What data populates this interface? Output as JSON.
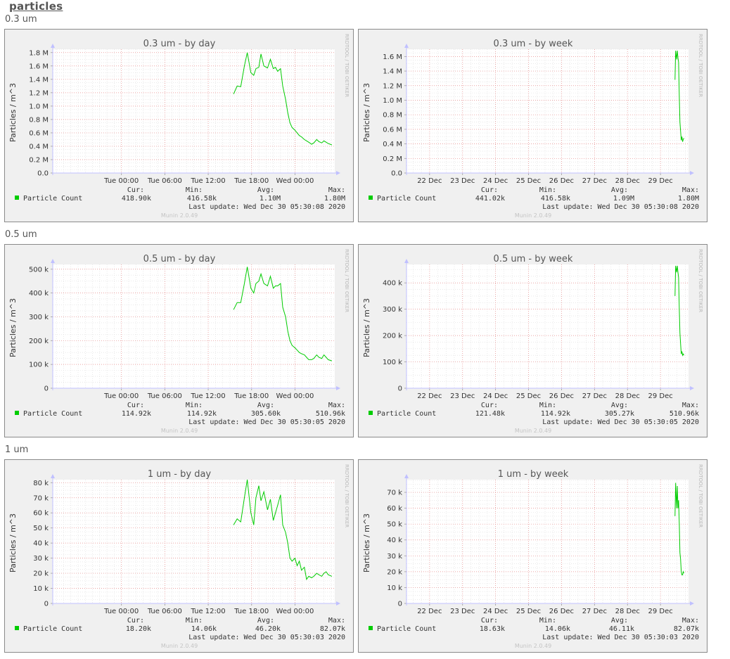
{
  "page": {
    "title": "particles",
    "watermark": "RRDTOOL / TOBI OETIKER",
    "footer": "Munin 2.0.49"
  },
  "colors": {
    "series": "#00cc00",
    "major_grid": "#e88a8a",
    "minor_grid": "#dcdcdc",
    "axis": "#c0c0ff"
  },
  "sections": [
    {
      "label": "0.3 um"
    },
    {
      "label": "0.5 um"
    },
    {
      "label": "1 um"
    }
  ],
  "chart_data": [
    {
      "type": "line",
      "title": "0.3 um - by day",
      "ylabel": "Particles / m^3",
      "x_tick_labels": [
        "Tue 00:00",
        "Tue 06:00",
        "Tue 12:00",
        "Tue 18:00",
        "Wed 00:00"
      ],
      "x_range_hours": [
        -9.5,
        29.5
      ],
      "x_ticks_hours": [
        0,
        6,
        12,
        18,
        24
      ],
      "y_ticks": [
        0,
        200000,
        400000,
        600000,
        800000,
        1000000,
        1200000,
        1400000,
        1600000,
        1800000
      ],
      "y_tick_labels": [
        "0.0",
        "0.2 M",
        "0.4 M",
        "0.6 M",
        "0.8 M",
        "1.0 M",
        "1.2 M",
        "1.4 M",
        "1.6 M",
        "1.8 M"
      ],
      "ylim": [
        0,
        1850000
      ],
      "series": [
        {
          "name": "Particle Count",
          "x": [
            15.5,
            16.0,
            16.5,
            17.0,
            17.4,
            17.9,
            18.3,
            18.6,
            19.0,
            19.3,
            19.7,
            20.2,
            20.6,
            21.0,
            21.3,
            21.6,
            22.0,
            22.3,
            22.7,
            23.0,
            23.3,
            23.6,
            24.0,
            24.3,
            24.6,
            24.9,
            25.3,
            25.6,
            25.9,
            26.3,
            26.6,
            27.0,
            27.3,
            27.7,
            28.0,
            28.3,
            28.6,
            29.1
          ],
          "y": [
            1180000,
            1300000,
            1290000,
            1600000,
            1800000,
            1500000,
            1460000,
            1560000,
            1580000,
            1780000,
            1600000,
            1570000,
            1700000,
            1560000,
            1580000,
            1520000,
            1560000,
            1300000,
            1100000,
            900000,
            750000,
            680000,
            640000,
            600000,
            560000,
            540000,
            500000,
            480000,
            460000,
            430000,
            450000,
            500000,
            470000,
            450000,
            480000,
            460000,
            440000,
            420000
          ]
        }
      ],
      "legend": {
        "name": "Particle Count",
        "cur": "418.90k",
        "min": "416.58k",
        "avg": "1.10M",
        "max": "1.80M"
      },
      "last_update": "Last update: Wed Dec 30 05:30:08 2020"
    },
    {
      "type": "line",
      "title": "0.3 um - by week",
      "ylabel": "Particles / m^3",
      "x_tick_labels": [
        "22 Dec",
        "23 Dec",
        "24 Dec",
        "25 Dec",
        "26 Dec",
        "27 Dec",
        "28 Dec",
        "29 Dec"
      ],
      "x_range_days": [
        21.3,
        29.85
      ],
      "x_ticks_days": [
        22,
        23,
        24,
        25,
        26,
        27,
        28,
        29
      ],
      "y_ticks": [
        0,
        200000,
        400000,
        600000,
        800000,
        1000000,
        1200000,
        1400000,
        1600000
      ],
      "y_tick_labels": [
        "0.0",
        "0.2 M",
        "0.4 M",
        "0.6 M",
        "0.8 M",
        "1.0 M",
        "1.2 M",
        "1.4 M",
        "1.6 M"
      ],
      "ylim": [
        0,
        1700000
      ],
      "series": [
        {
          "name": "Particle Count",
          "x": [
            29.44,
            29.46,
            29.49,
            29.51,
            29.53,
            29.55,
            29.57,
            29.59,
            29.61,
            29.63,
            29.65,
            29.67,
            29.69,
            29.71
          ],
          "y": [
            1280000,
            1680000,
            1560000,
            1680000,
            1580000,
            1520000,
            1050000,
            700000,
            580000,
            450000,
            500000,
            430000,
            460000,
            480000
          ]
        }
      ],
      "legend": {
        "name": "Particle Count",
        "cur": "441.02k",
        "min": "416.58k",
        "avg": "1.09M",
        "max": "1.80M"
      },
      "last_update": "Last update: Wed Dec 30 05:30:08 2020"
    },
    {
      "type": "line",
      "title": "0.5 um - by day",
      "ylabel": "Particles / m^3",
      "x_tick_labels": [
        "Tue 00:00",
        "Tue 06:00",
        "Tue 12:00",
        "Tue 18:00",
        "Wed 00:00"
      ],
      "x_range_hours": [
        -9.5,
        29.5
      ],
      "x_ticks_hours": [
        0,
        6,
        12,
        18,
        24
      ],
      "y_ticks": [
        0,
        100000,
        200000,
        300000,
        400000,
        500000
      ],
      "y_tick_labels": [
        "0",
        "100 k",
        "200 k",
        "300 k",
        "400 k",
        "500 k"
      ],
      "ylim": [
        0,
        520000
      ],
      "series": [
        {
          "name": "Particle Count",
          "x": [
            15.5,
            16.0,
            16.5,
            17.0,
            17.4,
            17.9,
            18.3,
            18.6,
            19.0,
            19.3,
            19.7,
            20.2,
            20.6,
            21.0,
            21.3,
            21.6,
            22.0,
            22.3,
            22.7,
            23.0,
            23.3,
            23.6,
            24.0,
            24.3,
            24.6,
            24.9,
            25.3,
            25.6,
            25.9,
            26.3,
            26.6,
            27.0,
            27.3,
            27.7,
            28.0,
            28.3,
            28.6,
            29.1
          ],
          "y": [
            330000,
            360000,
            360000,
            440000,
            510000,
            420000,
            400000,
            440000,
            450000,
            480000,
            440000,
            430000,
            470000,
            420000,
            430000,
            430000,
            440000,
            340000,
            300000,
            240000,
            200000,
            180000,
            170000,
            160000,
            150000,
            145000,
            140000,
            130000,
            120000,
            120000,
            125000,
            140000,
            130000,
            125000,
            140000,
            130000,
            120000,
            115000
          ]
        }
      ],
      "legend": {
        "name": "Particle Count",
        "cur": "114.92k",
        "min": "114.92k",
        "avg": "305.60k",
        "max": "510.96k"
      },
      "last_update": "Last update: Wed Dec 30 05:30:05 2020"
    },
    {
      "type": "line",
      "title": "0.5 um - by week",
      "ylabel": "Particles / m^3",
      "x_tick_labels": [
        "22 Dec",
        "23 Dec",
        "24 Dec",
        "25 Dec",
        "26 Dec",
        "27 Dec",
        "28 Dec",
        "29 Dec"
      ],
      "x_range_days": [
        21.3,
        29.85
      ],
      "x_ticks_days": [
        22,
        23,
        24,
        25,
        26,
        27,
        28,
        29
      ],
      "y_ticks": [
        0,
        100000,
        200000,
        300000,
        400000
      ],
      "y_tick_labels": [
        "0",
        "100 k",
        "200 k",
        "300 k",
        "400 k"
      ],
      "ylim": [
        0,
        470000
      ],
      "series": [
        {
          "name": "Particle Count",
          "x": [
            29.44,
            29.46,
            29.49,
            29.51,
            29.53,
            29.55,
            29.57,
            29.59,
            29.61,
            29.63,
            29.65,
            29.67,
            29.69,
            29.71
          ],
          "y": [
            350000,
            465000,
            440000,
            465000,
            440000,
            420000,
            300000,
            210000,
            170000,
            130000,
            140000,
            125000,
            130000,
            125000
          ]
        }
      ],
      "legend": {
        "name": "Particle Count",
        "cur": "121.48k",
        "min": "114.92k",
        "avg": "305.27k",
        "max": "510.96k"
      },
      "last_update": "Last update: Wed Dec 30 05:30:05 2020"
    },
    {
      "type": "line",
      "title": "1 um - by day",
      "ylabel": "Particles / m^3",
      "x_tick_labels": [
        "Tue 00:00",
        "Tue 06:00",
        "Tue 12:00",
        "Tue 18:00",
        "Wed 00:00"
      ],
      "x_range_hours": [
        -9.5,
        29.5
      ],
      "x_ticks_hours": [
        0,
        6,
        12,
        18,
        24
      ],
      "y_ticks": [
        0,
        10000,
        20000,
        30000,
        40000,
        50000,
        60000,
        70000,
        80000
      ],
      "y_tick_labels": [
        "0",
        "10 k",
        "20 k",
        "30 k",
        "40 k",
        "50 k",
        "60 k",
        "70 k",
        "80 k"
      ],
      "ylim": [
        0,
        82000
      ],
      "series": [
        {
          "name": "Particle Count",
          "x": [
            15.5,
            16.0,
            16.5,
            17.0,
            17.4,
            17.9,
            18.3,
            18.6,
            19.0,
            19.3,
            19.7,
            20.2,
            20.6,
            21.0,
            21.3,
            21.6,
            22.0,
            22.3,
            22.7,
            23.0,
            23.3,
            23.6,
            24.0,
            24.3,
            24.6,
            24.9,
            25.3,
            25.6,
            25.9,
            26.3,
            26.6,
            27.0,
            27.3,
            27.7,
            28.0,
            28.3,
            28.6,
            29.1
          ],
          "y": [
            52000,
            56000,
            54000,
            70000,
            82000,
            60000,
            52000,
            70000,
            78000,
            68000,
            74000,
            62000,
            69000,
            55000,
            60000,
            65000,
            72000,
            52000,
            47000,
            40000,
            30000,
            28000,
            30000,
            25000,
            28000,
            22000,
            24000,
            16000,
            18000,
            17000,
            18000,
            20000,
            19000,
            18000,
            20000,
            21000,
            19000,
            18000
          ]
        }
      ],
      "legend": {
        "name": "Particle Count",
        "cur": "18.20k",
        "min": "14.06k",
        "avg": "46.20k",
        "max": "82.07k"
      },
      "last_update": "Last update: Wed Dec 30 05:30:03 2020"
    },
    {
      "type": "line",
      "title": "1 um - by week",
      "ylabel": "Particles / m^3",
      "x_tick_labels": [
        "22 Dec",
        "23 Dec",
        "24 Dec",
        "25 Dec",
        "26 Dec",
        "27 Dec",
        "28 Dec",
        "29 Dec"
      ],
      "x_range_days": [
        21.3,
        29.85
      ],
      "x_ticks_days": [
        22,
        23,
        24,
        25,
        26,
        27,
        28,
        29
      ],
      "y_ticks": [
        0,
        10000,
        20000,
        30000,
        40000,
        50000,
        60000,
        70000
      ],
      "y_tick_labels": [
        "0",
        "10 k",
        "20 k",
        "30 k",
        "40 k",
        "50 k",
        "60 k",
        "70 k"
      ],
      "ylim": [
        0,
        78000
      ],
      "series": [
        {
          "name": "Particle Count",
          "x": [
            29.44,
            29.46,
            29.49,
            29.51,
            29.53,
            29.55,
            29.57,
            29.59,
            29.61,
            29.63,
            29.65,
            29.67,
            29.69,
            29.71
          ],
          "y": [
            55000,
            76000,
            60000,
            74000,
            60000,
            65000,
            50000,
            32000,
            28000,
            20000,
            18000,
            18000,
            20000,
            19000
          ]
        }
      ],
      "legend": {
        "name": "Particle Count",
        "cur": "18.63k",
        "min": "14.06k",
        "avg": "46.11k",
        "max": "82.07k"
      },
      "last_update": "Last update: Wed Dec 30 05:30:03 2020"
    }
  ]
}
